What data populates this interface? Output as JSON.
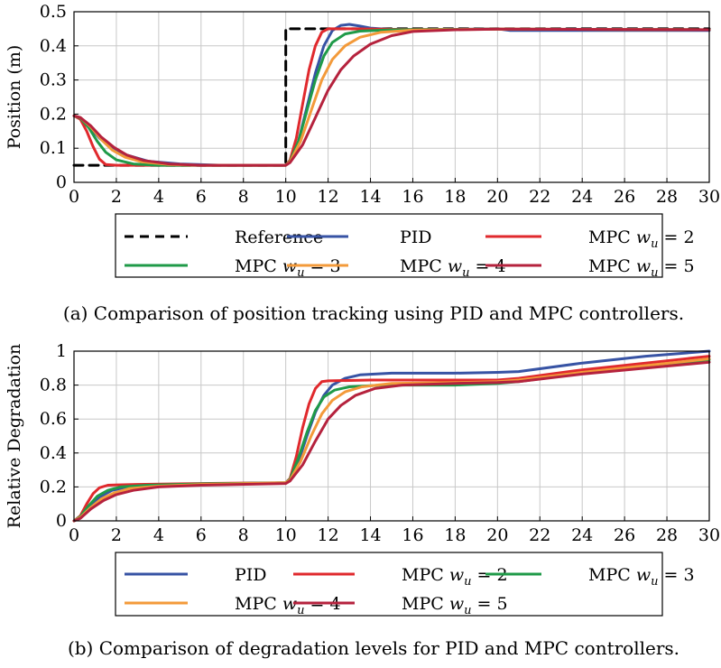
{
  "chart_data": [
    {
      "type": "line",
      "id": "position",
      "title": "",
      "xlabel": "",
      "ylabel": "Position (m)",
      "xlim": [
        0,
        30
      ],
      "ylim": [
        0,
        0.5
      ],
      "xticks": [
        0,
        2,
        4,
        6,
        8,
        10,
        12,
        14,
        16,
        18,
        20,
        22,
        24,
        26,
        28,
        30
      ],
      "yticks": [
        0,
        0.1,
        0.2,
        0.3,
        0.4,
        0.5
      ],
      "ytick_labels": [
        "0",
        "0.1",
        "0.2",
        "0.3",
        "0.4",
        "0.5"
      ],
      "grid": true,
      "legend_position": "below",
      "legend_columns": 3,
      "caption": "(a) Comparison of position tracking using PID and MPC controllers.",
      "series": [
        {
          "name": "Reference",
          "label_base": "Reference",
          "sub": "",
          "value_text": "",
          "color": "#000000",
          "dashed": true,
          "points": [
            [
              0,
              0.05
            ],
            [
              10,
              0.05
            ],
            [
              10,
              0.45
            ],
            [
              30,
              0.45
            ]
          ]
        },
        {
          "name": "PID",
          "label_base": "PID",
          "sub": "",
          "value_text": "",
          "color": "#3753a4",
          "dashed": false,
          "points": [
            [
              0,
              0.195
            ],
            [
              0.3,
              0.19
            ],
            [
              0.7,
              0.165
            ],
            [
              1.2,
              0.13
            ],
            [
              1.8,
              0.1
            ],
            [
              2.5,
              0.08
            ],
            [
              3.5,
              0.062
            ],
            [
              5,
              0.054
            ],
            [
              7,
              0.05
            ],
            [
              10,
              0.05
            ],
            [
              10.2,
              0.06
            ],
            [
              10.6,
              0.12
            ],
            [
              11,
              0.22
            ],
            [
              11.4,
              0.32
            ],
            [
              11.8,
              0.4
            ],
            [
              12.2,
              0.445
            ],
            [
              12.6,
              0.46
            ],
            [
              13,
              0.463
            ],
            [
              13.5,
              0.458
            ],
            [
              14,
              0.452
            ],
            [
              15,
              0.448
            ],
            [
              16,
              0.447
            ],
            [
              18,
              0.448
            ],
            [
              20,
              0.45
            ],
            [
              20.6,
              0.445
            ],
            [
              22,
              0.445
            ],
            [
              30,
              0.445
            ]
          ]
        },
        {
          "name": "MPC w_u = 2",
          "label_base": "MPC ",
          "sub": "u",
          "value_text": " = 2",
          "color": "#e0292d",
          "dashed": false,
          "points": [
            [
              0,
              0.195
            ],
            [
              0.3,
              0.185
            ],
            [
              0.6,
              0.15
            ],
            [
              0.9,
              0.105
            ],
            [
              1.2,
              0.068
            ],
            [
              1.5,
              0.052
            ],
            [
              2,
              0.05
            ],
            [
              10,
              0.05
            ],
            [
              10.2,
              0.065
            ],
            [
              10.5,
              0.13
            ],
            [
              10.8,
              0.23
            ],
            [
              11.1,
              0.33
            ],
            [
              11.4,
              0.4
            ],
            [
              11.7,
              0.44
            ],
            [
              12,
              0.45
            ],
            [
              13,
              0.45
            ],
            [
              16,
              0.448
            ],
            [
              20,
              0.449
            ],
            [
              30,
              0.447
            ]
          ]
        },
        {
          "name": "MPC w_u = 3",
          "label_base": "MPC ",
          "sub": "u",
          "value_text": " = 3",
          "color": "#1f9a48",
          "dashed": false,
          "points": [
            [
              0,
              0.195
            ],
            [
              0.3,
              0.188
            ],
            [
              0.7,
              0.16
            ],
            [
              1.1,
              0.12
            ],
            [
              1.5,
              0.088
            ],
            [
              2,
              0.066
            ],
            [
              2.8,
              0.054
            ],
            [
              4,
              0.05
            ],
            [
              10,
              0.05
            ],
            [
              10.2,
              0.062
            ],
            [
              10.6,
              0.12
            ],
            [
              11,
              0.21
            ],
            [
              11.4,
              0.3
            ],
            [
              11.8,
              0.37
            ],
            [
              12.2,
              0.41
            ],
            [
              12.8,
              0.435
            ],
            [
              13.5,
              0.443
            ],
            [
              15,
              0.447
            ],
            [
              20,
              0.449
            ],
            [
              30,
              0.447
            ]
          ]
        },
        {
          "name": "MPC w_u = 4",
          "label_base": "MPC ",
          "sub": "u",
          "value_text": " = 4",
          "color": "#f39a3a",
          "dashed": false,
          "points": [
            [
              0,
              0.195
            ],
            [
              0.3,
              0.19
            ],
            [
              0.8,
              0.162
            ],
            [
              1.3,
              0.125
            ],
            [
              1.8,
              0.095
            ],
            [
              2.4,
              0.074
            ],
            [
              3.2,
              0.06
            ],
            [
              4.5,
              0.052
            ],
            [
              6,
              0.05
            ],
            [
              10,
              0.05
            ],
            [
              10.2,
              0.06
            ],
            [
              10.7,
              0.12
            ],
            [
              11.2,
              0.21
            ],
            [
              11.7,
              0.3
            ],
            [
              12.2,
              0.36
            ],
            [
              12.8,
              0.4
            ],
            [
              13.5,
              0.425
            ],
            [
              14.5,
              0.44
            ],
            [
              16,
              0.446
            ],
            [
              20,
              0.449
            ],
            [
              30,
              0.447
            ]
          ]
        },
        {
          "name": "MPC w_u = 5",
          "label_base": "MPC ",
          "sub": "u",
          "value_text": " = 5",
          "color": "#b5223d",
          "dashed": false,
          "points": [
            [
              0,
              0.195
            ],
            [
              0.3,
              0.19
            ],
            [
              0.8,
              0.165
            ],
            [
              1.3,
              0.132
            ],
            [
              1.9,
              0.102
            ],
            [
              2.5,
              0.08
            ],
            [
              3.3,
              0.064
            ],
            [
              4.5,
              0.054
            ],
            [
              6,
              0.05
            ],
            [
              10,
              0.05
            ],
            [
              10.2,
              0.058
            ],
            [
              10.8,
              0.11
            ],
            [
              11.4,
              0.19
            ],
            [
              12,
              0.27
            ],
            [
              12.6,
              0.33
            ],
            [
              13.2,
              0.37
            ],
            [
              14,
              0.405
            ],
            [
              15,
              0.43
            ],
            [
              16,
              0.442
            ],
            [
              18,
              0.447
            ],
            [
              20,
              0.449
            ],
            [
              30,
              0.447
            ]
          ]
        }
      ]
    },
    {
      "type": "line",
      "id": "degradation",
      "title": "",
      "xlabel": "",
      "ylabel": "Relative Degradation",
      "xlim": [
        0,
        30
      ],
      "ylim": [
        0,
        1
      ],
      "xticks": [
        0,
        2,
        4,
        6,
        8,
        10,
        12,
        14,
        16,
        18,
        20,
        22,
        24,
        26,
        28,
        30
      ],
      "yticks": [
        0,
        0.2,
        0.4,
        0.6,
        0.8,
        1
      ],
      "ytick_labels": [
        "0",
        "0.2",
        "0.4",
        "0.6",
        "0.8",
        "1"
      ],
      "grid": true,
      "legend_position": "below",
      "legend_columns": 3,
      "caption": "(b) Comparison of degradation levels for PID and MPC controllers.",
      "series": [
        {
          "name": "PID",
          "label_base": "PID",
          "sub": "",
          "value_text": "",
          "color": "#3753a4",
          "dashed": false,
          "points": [
            [
              0,
              0
            ],
            [
              0.3,
              0.02
            ],
            [
              0.7,
              0.08
            ],
            [
              1.2,
              0.14
            ],
            [
              1.8,
              0.18
            ],
            [
              2.5,
              0.2
            ],
            [
              4,
              0.21
            ],
            [
              6,
              0.215
            ],
            [
              10,
              0.225
            ],
            [
              10.2,
              0.24
            ],
            [
              10.6,
              0.35
            ],
            [
              11,
              0.5
            ],
            [
              11.4,
              0.64
            ],
            [
              11.8,
              0.74
            ],
            [
              12.2,
              0.8
            ],
            [
              12.8,
              0.84
            ],
            [
              13.5,
              0.86
            ],
            [
              15,
              0.87
            ],
            [
              18,
              0.87
            ],
            [
              20,
              0.875
            ],
            [
              21,
              0.88
            ],
            [
              24,
              0.93
            ],
            [
              27,
              0.97
            ],
            [
              30,
              1.0
            ]
          ]
        },
        {
          "name": "MPC w_u = 2",
          "label_base": "MPC ",
          "sub": "u",
          "value_text": " = 2",
          "color": "#e0292d",
          "dashed": false,
          "points": [
            [
              0,
              0
            ],
            [
              0.3,
              0.03
            ],
            [
              0.6,
              0.1
            ],
            [
              0.9,
              0.16
            ],
            [
              1.2,
              0.195
            ],
            [
              1.6,
              0.21
            ],
            [
              3,
              0.215
            ],
            [
              6,
              0.22
            ],
            [
              10,
              0.225
            ],
            [
              10.2,
              0.25
            ],
            [
              10.5,
              0.38
            ],
            [
              10.8,
              0.55
            ],
            [
              11.1,
              0.69
            ],
            [
              11.4,
              0.78
            ],
            [
              11.7,
              0.82
            ],
            [
              12,
              0.825
            ],
            [
              14,
              0.83
            ],
            [
              18,
              0.83
            ],
            [
              20,
              0.83
            ],
            [
              21,
              0.84
            ],
            [
              24,
              0.89
            ],
            [
              27,
              0.93
            ],
            [
              30,
              0.97
            ]
          ]
        },
        {
          "name": "MPC w_u = 3",
          "label_base": "MPC ",
          "sub": "u",
          "value_text": " = 3",
          "color": "#1f9a48",
          "dashed": false,
          "points": [
            [
              0,
              0
            ],
            [
              0.3,
              0.025
            ],
            [
              0.7,
              0.09
            ],
            [
              1.1,
              0.145
            ],
            [
              1.6,
              0.18
            ],
            [
              2.2,
              0.2
            ],
            [
              3.5,
              0.21
            ],
            [
              6,
              0.218
            ],
            [
              10,
              0.225
            ],
            [
              10.2,
              0.245
            ],
            [
              10.6,
              0.37
            ],
            [
              11,
              0.52
            ],
            [
              11.4,
              0.65
            ],
            [
              11.8,
              0.73
            ],
            [
              12.3,
              0.77
            ],
            [
              13,
              0.79
            ],
            [
              14.5,
              0.8
            ],
            [
              18,
              0.8
            ],
            [
              20,
              0.81
            ],
            [
              21,
              0.82
            ],
            [
              24,
              0.87
            ],
            [
              27,
              0.91
            ],
            [
              30,
              0.95
            ]
          ]
        },
        {
          "name": "MPC w_u = 4",
          "label_base": "MPC ",
          "sub": "u",
          "value_text": " = 4",
          "color": "#f39a3a",
          "dashed": false,
          "points": [
            [
              0,
              0
            ],
            [
              0.3,
              0.02
            ],
            [
              0.8,
              0.08
            ],
            [
              1.3,
              0.13
            ],
            [
              1.9,
              0.165
            ],
            [
              2.6,
              0.19
            ],
            [
              4,
              0.205
            ],
            [
              6,
              0.215
            ],
            [
              10,
              0.225
            ],
            [
              10.2,
              0.24
            ],
            [
              10.7,
              0.35
            ],
            [
              11.2,
              0.5
            ],
            [
              11.7,
              0.63
            ],
            [
              12.2,
              0.71
            ],
            [
              12.8,
              0.76
            ],
            [
              13.6,
              0.79
            ],
            [
              15,
              0.81
            ],
            [
              18,
              0.815
            ],
            [
              20,
              0.82
            ],
            [
              21,
              0.83
            ],
            [
              24,
              0.875
            ],
            [
              27,
              0.915
            ],
            [
              30,
              0.955
            ]
          ]
        },
        {
          "name": "MPC w_u = 5",
          "label_base": "MPC ",
          "sub": "u",
          "value_text": " = 5",
          "color": "#b5223d",
          "dashed": false,
          "points": [
            [
              0,
              0
            ],
            [
              0.3,
              0.015
            ],
            [
              0.8,
              0.07
            ],
            [
              1.4,
              0.12
            ],
            [
              2,
              0.155
            ],
            [
              2.8,
              0.18
            ],
            [
              4,
              0.2
            ],
            [
              6,
              0.21
            ],
            [
              10,
              0.22
            ],
            [
              10.2,
              0.235
            ],
            [
              10.8,
              0.33
            ],
            [
              11.4,
              0.47
            ],
            [
              12,
              0.6
            ],
            [
              12.6,
              0.68
            ],
            [
              13.3,
              0.74
            ],
            [
              14.2,
              0.78
            ],
            [
              15.5,
              0.8
            ],
            [
              18,
              0.81
            ],
            [
              20,
              0.815
            ],
            [
              21,
              0.82
            ],
            [
              24,
              0.865
            ],
            [
              27,
              0.9
            ],
            [
              30,
              0.935
            ]
          ]
        }
      ]
    }
  ]
}
